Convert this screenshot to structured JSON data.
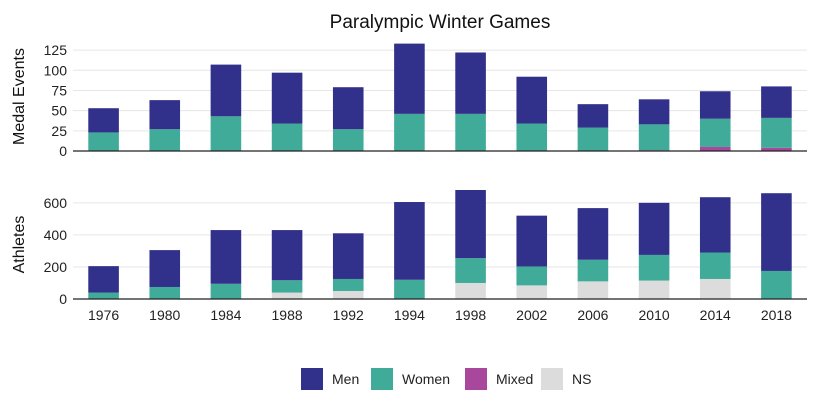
{
  "chart_data": {
    "type": "bar",
    "stacked": true,
    "title": "Paralympic Winter Games",
    "categories": [
      "1976",
      "1980",
      "1984",
      "1988",
      "1992",
      "1994",
      "1998",
      "2002",
      "2006",
      "2010",
      "2014",
      "2018"
    ],
    "legend": {
      "position": "bottom",
      "entries": [
        {
          "name": "Men",
          "color": "#31308a"
        },
        {
          "name": "Women",
          "color": "#3fab98"
        },
        {
          "name": "Mixed",
          "color": "#a8479c"
        },
        {
          "name": "NS",
          "color": "#dcdcdc"
        }
      ]
    },
    "panels": [
      {
        "ylabel": "Medal Events",
        "ylim": [
          0,
          135
        ],
        "yticks": [
          0,
          25,
          50,
          75,
          100,
          125
        ],
        "grid": true,
        "series": [
          {
            "name": "Mixed",
            "values": [
              0,
              0,
              0,
              0,
              0,
              0,
              0,
              0,
              0,
              1,
              5,
              4
            ]
          },
          {
            "name": "Women",
            "values": [
              23,
              27,
              43,
              34,
              27,
              46,
              46,
              34,
              29,
              32,
              35,
              37
            ]
          },
          {
            "name": "Men",
            "values": [
              30,
              36,
              64,
              63,
              52,
              87,
              76,
              58,
              29,
              31,
              34,
              39
            ]
          }
        ]
      },
      {
        "ylabel": "Athletes",
        "ylim": [
          0,
          680
        ],
        "yticks": [
          0,
          200,
          400,
          600
        ],
        "grid": true,
        "series": [
          {
            "name": "NS",
            "values": [
              0,
              0,
              0,
              40,
              50,
              0,
              100,
              85,
              110,
              115,
              125,
              0
            ]
          },
          {
            "name": "Women",
            "values": [
              40,
              75,
              95,
              77,
              75,
              120,
              155,
              118,
              135,
              160,
              165,
              175
            ]
          },
          {
            "name": "Mixed",
            "values": [
              0,
              0,
              0,
              0,
              0,
              0,
              0,
              0,
              0,
              0,
              0,
              0
            ]
          },
          {
            "name": "Men",
            "values": [
              165,
              230,
              335,
              313,
              285,
              485,
              425,
              317,
              322,
              325,
              345,
              485
            ]
          }
        ]
      }
    ]
  }
}
